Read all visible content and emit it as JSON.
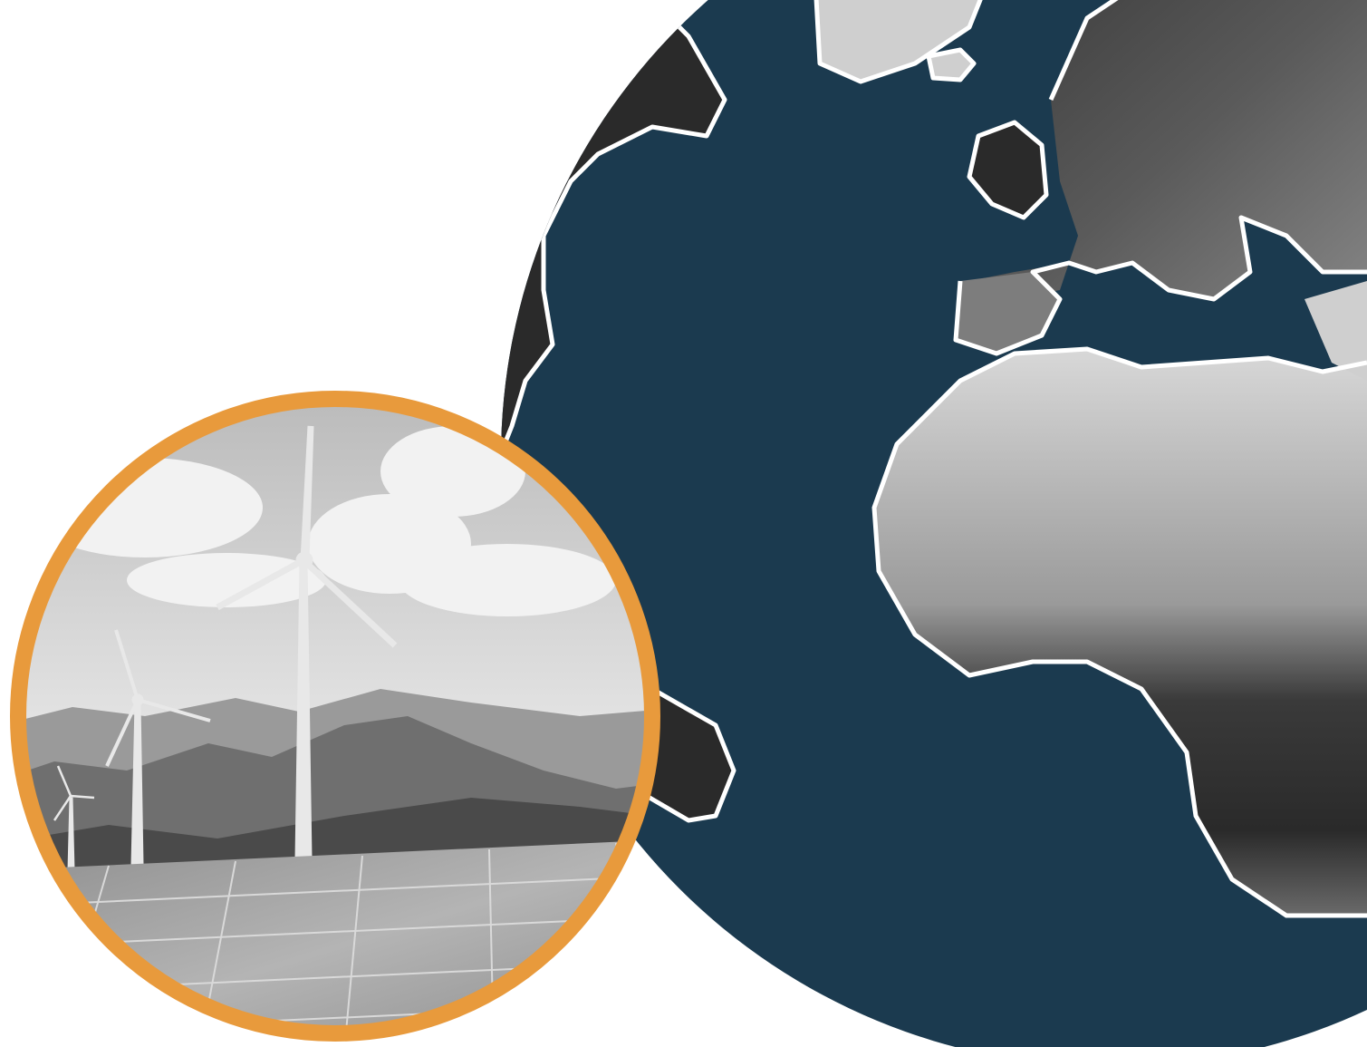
{
  "colors": {
    "background": "#ffffff",
    "ocean": "#1b3a4f",
    "land_dark": "#2a2a2a",
    "land_mid": "#7d7d7d",
    "land_light": "#cfcfcf",
    "coast_outline": "#ffffff",
    "ring": "#e89a3c",
    "sky": "#d6d6d6",
    "cloud": "#f2f2f2",
    "mountain_far": "#9a9a9a",
    "mountain_mid": "#6f6f6f",
    "mountain_near": "#4a4a4a",
    "turbine": "#e8e8e8",
    "panel": "#9c9c9c",
    "panel_grid": "#d9d9d9"
  },
  "graphics": {
    "globe": "earth-globe-atlantic-view",
    "inset": "wind-turbines-and-solar-panels-photo"
  }
}
